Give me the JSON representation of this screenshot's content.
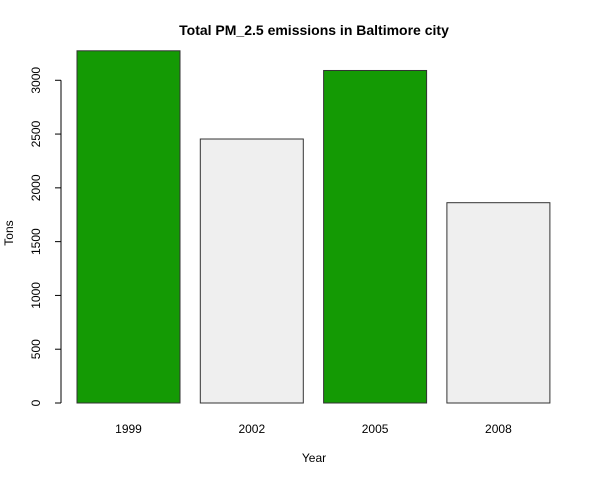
{
  "chart_data": {
    "type": "bar",
    "title": "Total PM_2.5 emissions in Baltimore city",
    "xlabel": "Year",
    "ylabel": "Tons",
    "categories": [
      "1999",
      "2002",
      "2005",
      "2008"
    ],
    "values": [
      3274,
      2454,
      3091,
      1862
    ],
    "bar_colors": [
      "#149a04",
      "#efefef",
      "#149a04",
      "#efefef"
    ],
    "ylim": [
      0,
      3300
    ],
    "yticks": [
      0,
      500,
      1000,
      1500,
      2000,
      2500,
      3000
    ],
    "grid": false,
    "legend": "none"
  }
}
